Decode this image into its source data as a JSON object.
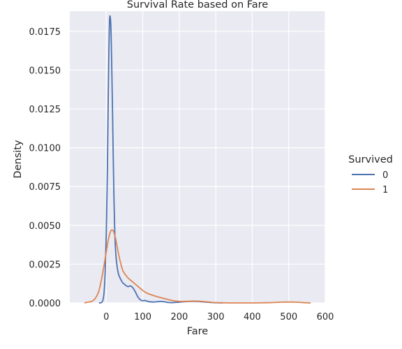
{
  "chart_data": {
    "type": "line",
    "title": "Survival Rate based on Fare",
    "xlabel": "Fare",
    "ylabel": "Density",
    "xlim": [
      -100,
      600
    ],
    "ylim": [
      0,
      0.0188
    ],
    "xticks": [
      0,
      100,
      200,
      300,
      400,
      500,
      600
    ],
    "yticks": [
      0.0,
      0.0025,
      0.005,
      0.0075,
      0.01,
      0.0125,
      0.015,
      0.0175
    ],
    "ytick_labels": [
      "0.0000",
      "0.0025",
      "0.0050",
      "0.0075",
      "0.0100",
      "0.0125",
      "0.0150",
      "0.0175"
    ],
    "grid": true,
    "background": "#eaeaf2",
    "legend": {
      "title": "Survived",
      "placement": "right"
    },
    "series": [
      {
        "name": "0",
        "color": "#4c72b0",
        "x": [
          -20,
          -15,
          -12,
          -9,
          -6,
          -3,
          0,
          3,
          5,
          7,
          9,
          11,
          13,
          15,
          17,
          19,
          21,
          23,
          25,
          27,
          30,
          33,
          36,
          40,
          45,
          50,
          55,
          60,
          65,
          70,
          75,
          80,
          85,
          90,
          95,
          100,
          105,
          110,
          115,
          120,
          130,
          140,
          150,
          160,
          170,
          180,
          200,
          220,
          240,
          260,
          280,
          300,
          320
        ],
        "y": [
          0,
          1e-05,
          5e-05,
          0.0002,
          0.0007,
          0.002,
          0.0045,
          0.0085,
          0.0125,
          0.016,
          0.0182,
          0.0184,
          0.0175,
          0.0152,
          0.0125,
          0.0095,
          0.0068,
          0.0048,
          0.0036,
          0.0029,
          0.0023,
          0.0019,
          0.0017,
          0.0015,
          0.0013,
          0.0012,
          0.0011,
          0.00105,
          0.0011,
          0.00105,
          0.0009,
          0.0007,
          0.00045,
          0.00028,
          0.00018,
          0.00014,
          0.00016,
          0.00013,
          9e-05,
          7e-05,
          6e-05,
          8e-05,
          0.0001,
          7e-05,
          3e-05,
          2e-05,
          5e-05,
          9e-05,
          0.0001,
          8e-05,
          4e-05,
          1e-05,
          0
        ]
      },
      {
        "name": "1",
        "color": "#dd8452",
        "x": [
          -60,
          -50,
          -40,
          -30,
          -20,
          -10,
          0,
          5,
          10,
          15,
          20,
          25,
          30,
          35,
          40,
          45,
          50,
          60,
          70,
          80,
          90,
          100,
          110,
          120,
          140,
          160,
          180,
          200,
          220,
          240,
          260,
          280,
          300,
          320,
          350,
          400,
          450,
          480,
          500,
          520,
          540,
          560
        ],
        "y": [
          0,
          5e-05,
          0.0001,
          0.0003,
          0.0008,
          0.0019,
          0.0033,
          0.004,
          0.0045,
          0.0047,
          0.0046,
          0.0042,
          0.0036,
          0.003,
          0.0025,
          0.0021,
          0.0019,
          0.0016,
          0.0014,
          0.0012,
          0.001,
          0.0008,
          0.00065,
          0.00055,
          0.0004,
          0.00028,
          0.00016,
          0.0001,
          0.0001,
          0.00012,
          0.0001,
          6e-05,
          2e-05,
          1e-05,
          0,
          0,
          2e-05,
          5e-05,
          6e-05,
          5e-05,
          2e-05,
          0
        ]
      }
    ]
  }
}
